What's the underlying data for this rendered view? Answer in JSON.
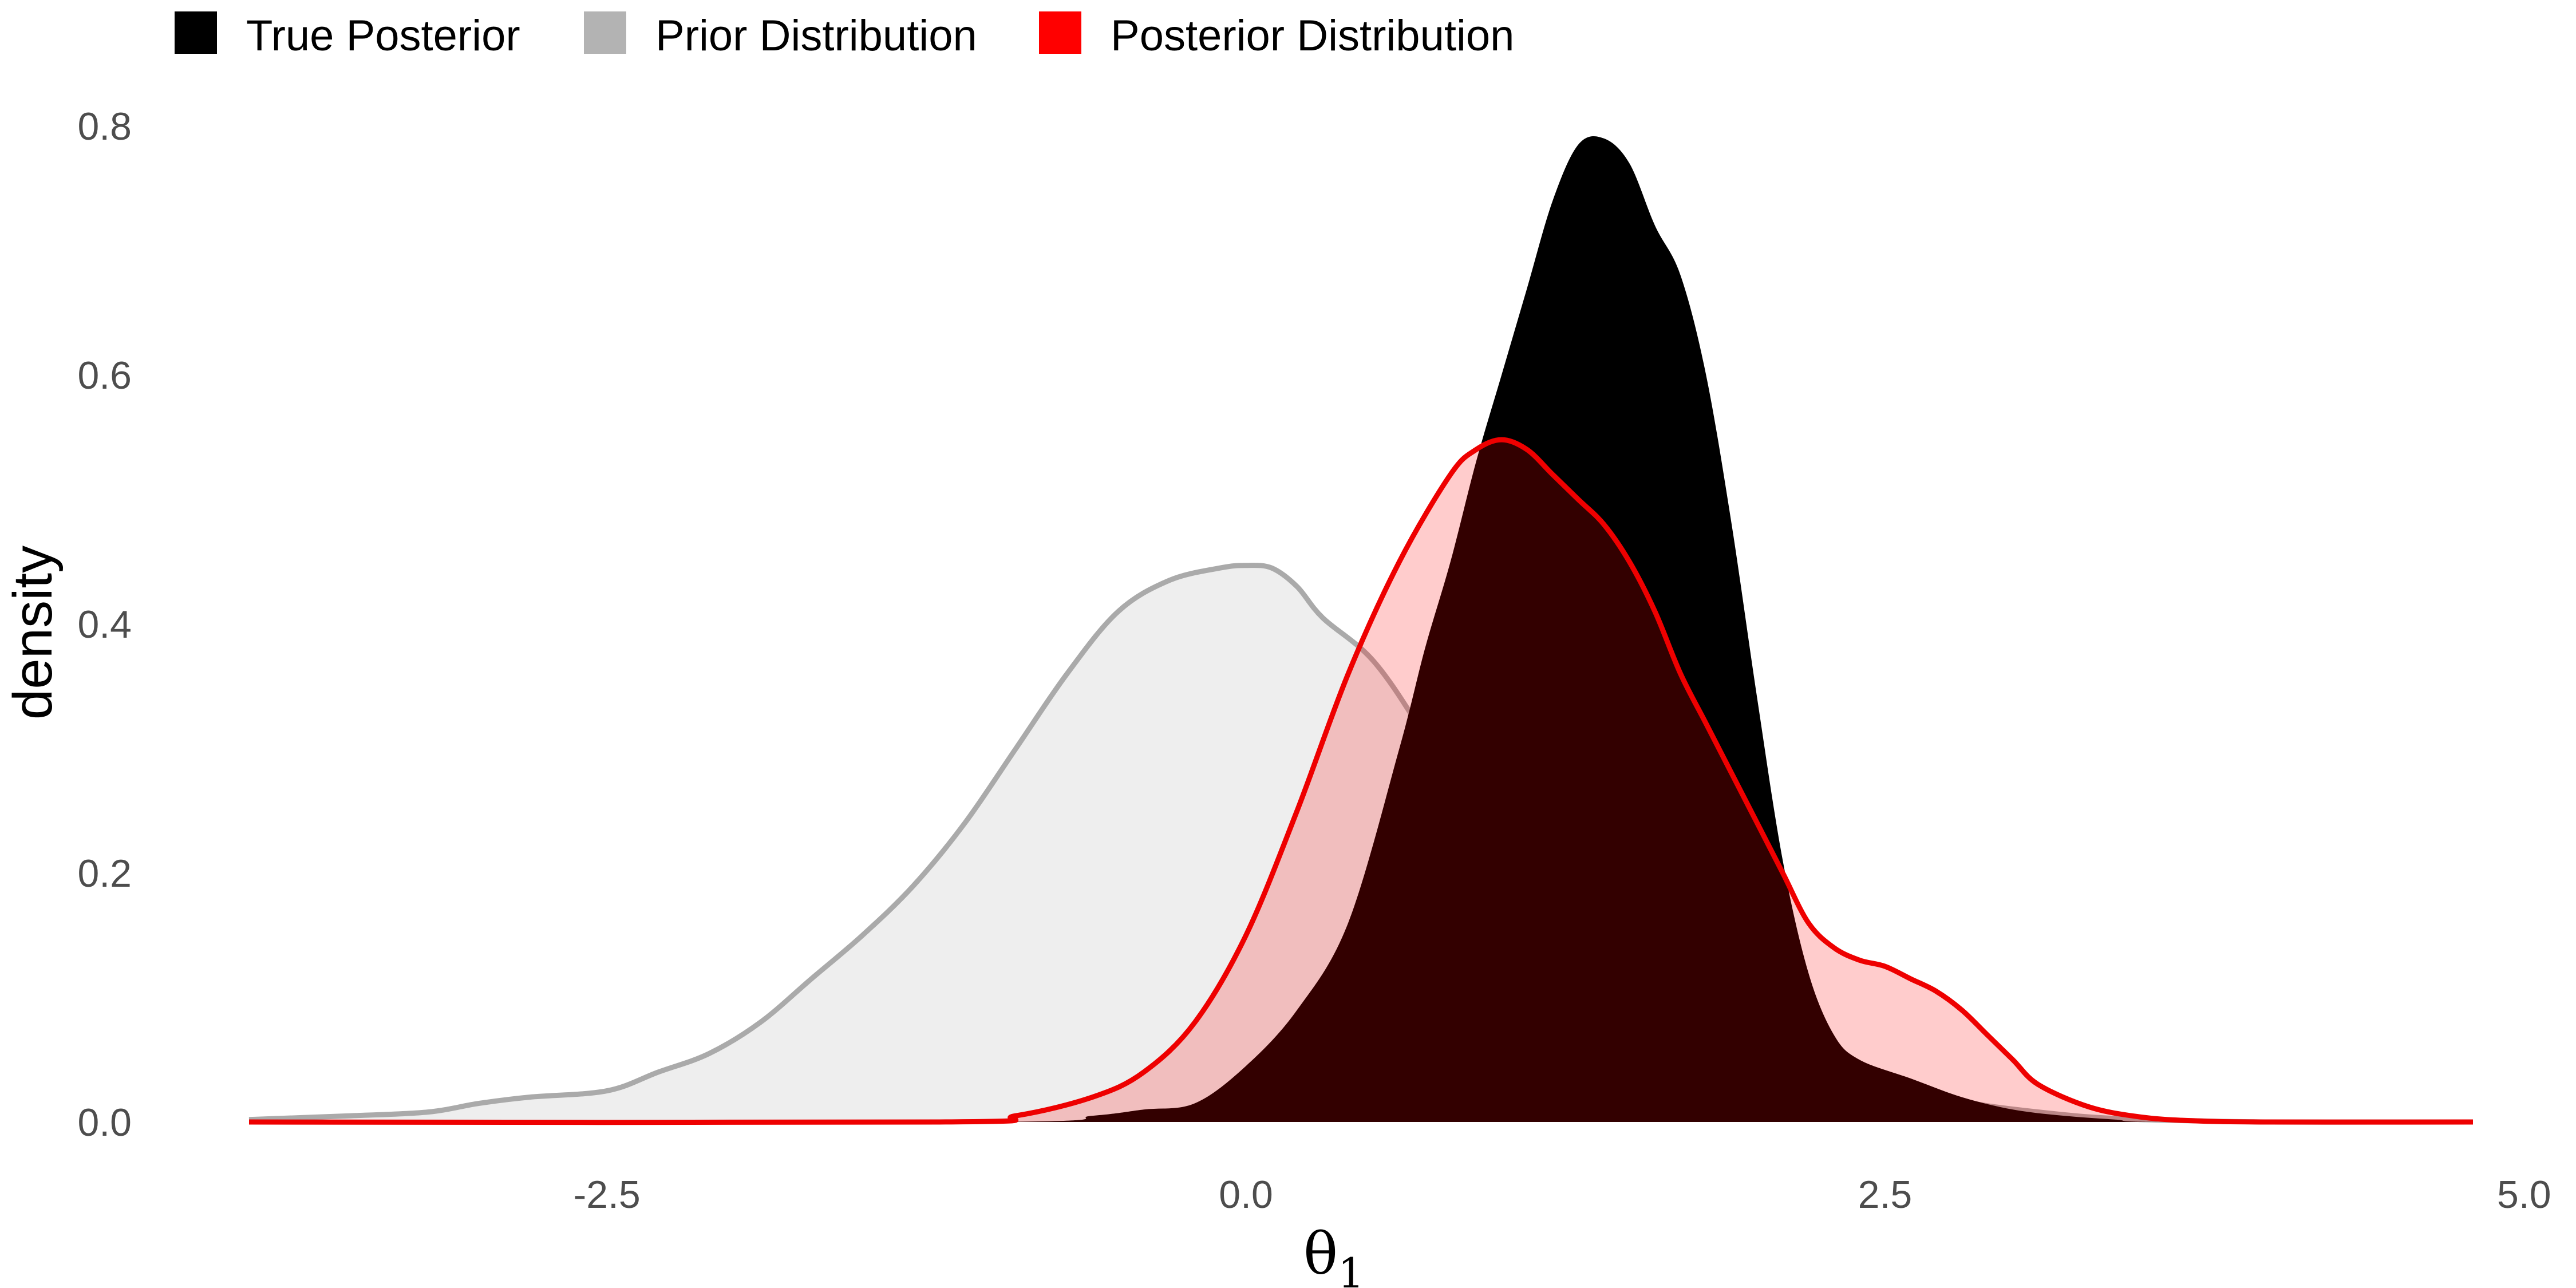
{
  "chart_data": {
    "type": "area",
    "xlabel": "θ",
    "xlabel_subscript": "1",
    "ylabel": "density",
    "xlim": [
      -3.9,
      4.8
    ],
    "ylim": [
      0,
      0.8
    ],
    "x_ticks": [
      -2.5,
      0.0,
      2.5,
      5.0
    ],
    "x_tick_labels": [
      "-2.5",
      "0.0",
      "2.5",
      "5.0"
    ],
    "y_ticks": [
      0.0,
      0.2,
      0.4,
      0.6,
      0.8
    ],
    "y_tick_labels": [
      "0.0",
      "0.2",
      "0.4",
      "0.6",
      "0.8"
    ],
    "grid": false,
    "legend_position": "top-left",
    "legend": [
      {
        "key": "true",
        "label": "True Posterior",
        "color": "#000000"
      },
      {
        "key": "prior",
        "label": "Prior Distribution",
        "color": "#b3b3b3"
      },
      {
        "key": "post",
        "label": "Posterior Distribution",
        "color": "#ff0000"
      }
    ],
    "series": [
      {
        "key": "prior",
        "name": "Prior Distribution",
        "fill": "#b3b3b3",
        "fill_opacity": 0.22,
        "stroke": "#aaaaaa",
        "x": [
          -3.9,
          -3.5,
          -3.2,
          -3.0,
          -2.8,
          -2.5,
          -2.3,
          -2.1,
          -1.9,
          -1.7,
          -1.5,
          -1.3,
          -1.1,
          -0.9,
          -0.7,
          -0.5,
          -0.3,
          -0.1,
          0.0,
          0.1,
          0.2,
          0.3,
          0.5,
          0.7,
          0.9,
          1.1,
          1.3,
          1.5,
          1.7,
          1.9,
          2.1,
          2.3,
          2.5,
          2.7,
          2.9,
          3.1,
          3.3,
          3.5,
          3.7,
          4.0,
          4.4,
          4.8
        ],
        "y": [
          0.002,
          0.005,
          0.008,
          0.015,
          0.02,
          0.025,
          0.04,
          0.055,
          0.08,
          0.115,
          0.15,
          0.19,
          0.24,
          0.3,
          0.36,
          0.41,
          0.435,
          0.445,
          0.447,
          0.445,
          0.43,
          0.405,
          0.37,
          0.31,
          0.24,
          0.18,
          0.13,
          0.1,
          0.08,
          0.06,
          0.045,
          0.035,
          0.027,
          0.02,
          0.013,
          0.008,
          0.004,
          0.002,
          0.001,
          0.0,
          0.0,
          0.0
        ]
      },
      {
        "key": "true",
        "name": "True Posterior",
        "fill": "#000000",
        "fill_opacity": 1.0,
        "stroke": "none",
        "x": [
          -3.9,
          -1.0,
          -0.6,
          -0.4,
          -0.2,
          0.0,
          0.2,
          0.4,
          0.6,
          0.7,
          0.8,
          0.9,
          1.0,
          1.1,
          1.2,
          1.3,
          1.4,
          1.5,
          1.6,
          1.7,
          1.8,
          1.9,
          2.0,
          2.1,
          2.2,
          2.3,
          2.4,
          2.6,
          2.8,
          3.0,
          3.2,
          3.4,
          3.6,
          4.8
        ],
        "y": [
          0.0,
          0.0,
          0.005,
          0.01,
          0.015,
          0.045,
          0.09,
          0.16,
          0.3,
          0.38,
          0.45,
          0.53,
          0.6,
          0.67,
          0.74,
          0.785,
          0.79,
          0.77,
          0.72,
          0.68,
          0.6,
          0.48,
          0.34,
          0.21,
          0.12,
          0.07,
          0.05,
          0.035,
          0.02,
          0.01,
          0.005,
          0.002,
          0.0,
          0.0
        ]
      },
      {
        "key": "post",
        "name": "Posterior Distribution",
        "fill": "#ff0000",
        "fill_opacity": 0.2,
        "stroke": "#ee0000",
        "x": [
          -3.9,
          -1.2,
          -0.9,
          -0.6,
          -0.4,
          -0.2,
          0.0,
          0.2,
          0.4,
          0.6,
          0.8,
          0.9,
          1.0,
          1.1,
          1.2,
          1.3,
          1.4,
          1.5,
          1.6,
          1.7,
          1.8,
          1.9,
          2.0,
          2.1,
          2.2,
          2.3,
          2.4,
          2.5,
          2.6,
          2.7,
          2.8,
          2.9,
          3.0,
          3.1,
          3.3,
          3.5,
          3.7,
          4.0,
          4.8
        ],
        "y": [
          0.0,
          0.0,
          0.005,
          0.02,
          0.04,
          0.08,
          0.15,
          0.25,
          0.36,
          0.45,
          0.52,
          0.54,
          0.548,
          0.54,
          0.52,
          0.5,
          0.48,
          0.45,
          0.41,
          0.36,
          0.32,
          0.28,
          0.24,
          0.2,
          0.16,
          0.14,
          0.13,
          0.125,
          0.115,
          0.105,
          0.09,
          0.07,
          0.05,
          0.03,
          0.012,
          0.004,
          0.001,
          0.0,
          0.0
        ]
      }
    ]
  }
}
